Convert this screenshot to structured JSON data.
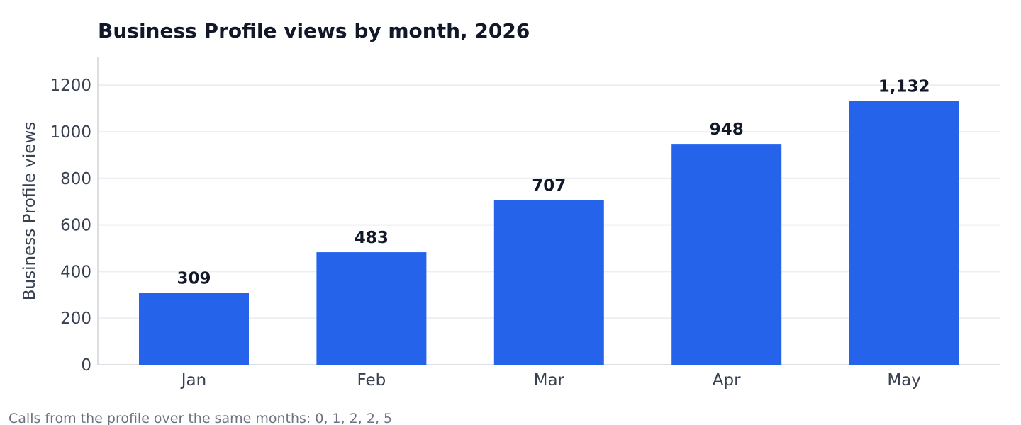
{
  "chart_data": {
    "type": "bar",
    "title": "Business Profile views by month, 2026",
    "xlabel": "",
    "ylabel": "Business Profile views",
    "categories": [
      "Jan",
      "Feb",
      "Mar",
      "Apr",
      "May"
    ],
    "values": [
      309,
      483,
      707,
      948,
      1132
    ],
    "data_labels": [
      "309",
      "483",
      "707",
      "948",
      "1,132"
    ],
    "ylim": [
      0,
      1320
    ],
    "yticks": [
      0,
      200,
      400,
      600,
      800,
      1000,
      1200
    ],
    "grid": true,
    "legend": "none",
    "bar_color": "#2563eb"
  },
  "footnote": "Calls from the profile over the same months: 0, 1, 2, 2, 5"
}
